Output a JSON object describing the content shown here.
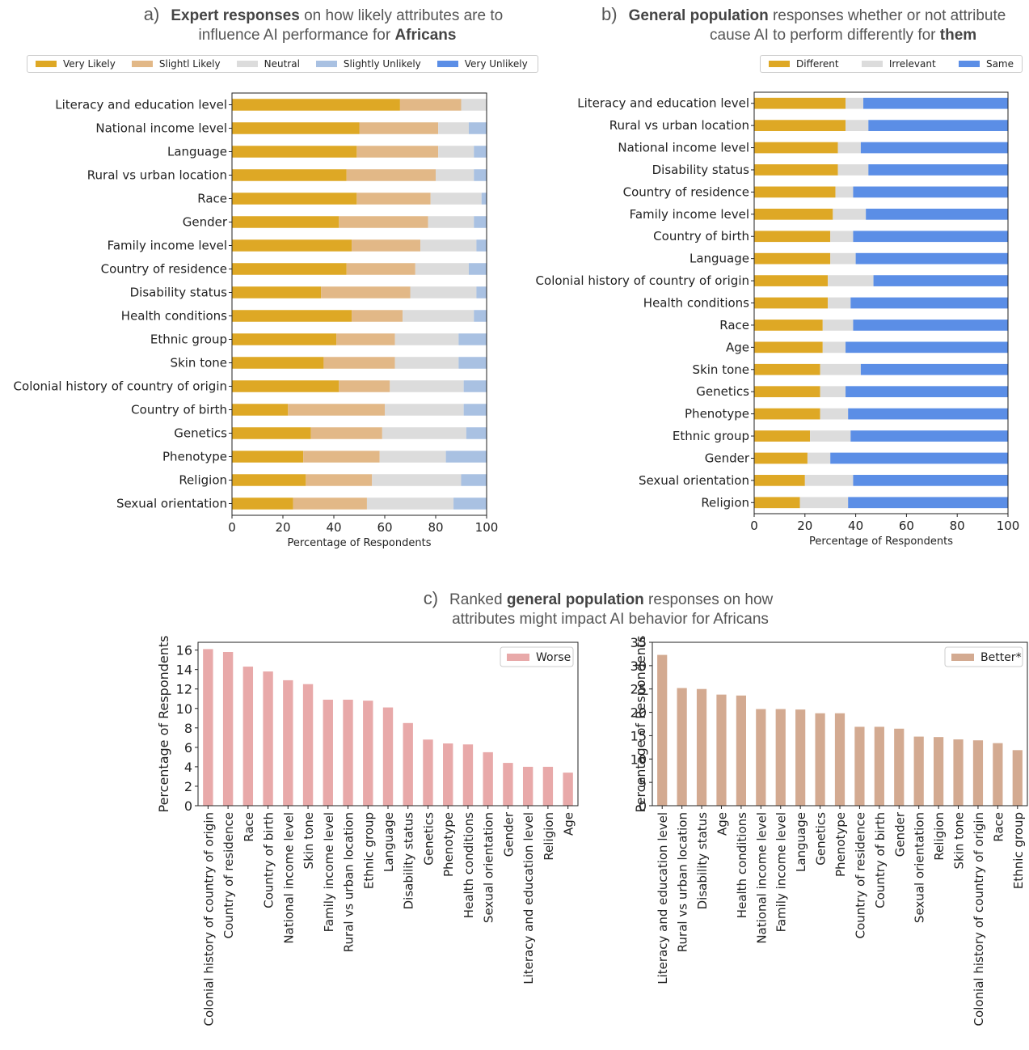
{
  "panel_a": {
    "letter": "a)",
    "title_bold1": "Expert responses",
    "title_rest1": " on how likely attributes are to",
    "title_line2_pre": "influence AI performance for ",
    "title_bold2": "Africans"
  },
  "panel_b": {
    "letter": "b)",
    "title_bold1": "General population",
    "title_rest1": " responses whether or not attribute",
    "title_line2_pre": "cause  AI to perform differently for ",
    "title_bold2": "them"
  },
  "panel_c": {
    "letter": "c)",
    "title_pre": "Ranked ",
    "title_bold": "general population",
    "title_rest1": "  responses on how",
    "title_line2": "attributes might impact AI behavior for Africans"
  },
  "chart_data": [
    {
      "type": "bar",
      "orientation": "horizontal",
      "stacked": true,
      "xlabel": "Percentage of Respondents",
      "xlim": [
        0,
        100
      ],
      "xticks": [
        0,
        20,
        40,
        60,
        80,
        100
      ],
      "legend_position": "top",
      "categories": [
        "Literacy and education level",
        "National income level",
        "Language",
        "Rural vs urban location",
        "Race",
        "Gender",
        "Family income level",
        "Country of residence",
        "Disability status",
        "Health conditions",
        "Ethnic group",
        "Skin tone",
        "Colonial history of country of origin",
        "Country of birth",
        "Genetics",
        "Phenotype",
        "Religion",
        "Sexual orientation"
      ],
      "series": [
        {
          "name": "Very Likely",
          "color": "#dea825",
          "values": [
            66,
            50,
            49,
            45,
            49,
            42,
            47,
            45,
            35,
            47,
            41,
            36,
            42,
            22,
            31,
            28,
            29,
            24
          ]
        },
        {
          "name": "Slightl Likely",
          "color": "#e2b887",
          "values": [
            24,
            31,
            32,
            35,
            29,
            35,
            27,
            27,
            35,
            20,
            23,
            28,
            20,
            38,
            28,
            30,
            26,
            29
          ]
        },
        {
          "name": "Neutral",
          "color": "#dcdcdc",
          "values": [
            10,
            12,
            14,
            15,
            20,
            18,
            22,
            21,
            26,
            28,
            25,
            25,
            29,
            31,
            33,
            26,
            35,
            34
          ]
        },
        {
          "name": "Slightly Unlikely",
          "color": "#a9c1e2",
          "values": [
            0,
            7,
            5,
            5,
            2,
            5,
            4,
            7,
            4,
            5,
            11,
            11,
            9,
            9,
            8,
            16,
            10,
            13
          ]
        },
        {
          "name": "Very Unlikely",
          "color": "#5b8ee6",
          "values": [
            0,
            0,
            0,
            0,
            0,
            0,
            0,
            0,
            0,
            0,
            0,
            0,
            0,
            0,
            0,
            0,
            0,
            0
          ]
        }
      ]
    },
    {
      "type": "bar",
      "orientation": "horizontal",
      "stacked": true,
      "xlabel": "Percentage of Respondents",
      "xlim": [
        0,
        100
      ],
      "xticks": [
        0,
        20,
        40,
        60,
        80,
        100
      ],
      "legend_position": "top",
      "categories": [
        "Literacy and education level",
        "Rural vs urban location",
        "National income level",
        "Disability status",
        "Country of residence",
        "Family income level",
        "Country of birth",
        "Language",
        "Colonial history of country of origin",
        "Health conditions",
        "Race",
        "Age",
        "Skin tone",
        "Genetics",
        "Phenotype",
        "Ethnic group",
        "Gender",
        "Sexual orientation",
        "Religion"
      ],
      "series": [
        {
          "name": "Different",
          "color": "#dea825",
          "values": [
            36,
            36,
            33,
            33,
            32,
            31,
            30,
            30,
            29,
            29,
            27,
            27,
            26,
            26,
            26,
            22,
            21,
            20,
            18
          ]
        },
        {
          "name": "Irrelevant",
          "color": "#dcdcdc",
          "values": [
            7,
            9,
            9,
            12,
            7,
            13,
            9,
            10,
            18,
            9,
            12,
            9,
            16,
            10,
            11,
            16,
            9,
            19,
            19
          ]
        },
        {
          "name": "Same",
          "color": "#5b8ee6",
          "values": [
            57,
            55,
            58,
            55,
            61,
            56,
            61,
            60,
            53,
            62,
            61,
            64,
            58,
            64,
            63,
            62,
            70,
            61,
            63
          ]
        }
      ]
    },
    {
      "type": "bar",
      "ylabel": "Percentage of Respondents",
      "ylim": [
        0,
        16.8
      ],
      "yticks": [
        0,
        2,
        4,
        6,
        8,
        10,
        12,
        14,
        16
      ],
      "legend_position": "top-right",
      "categories": [
        "Colonial history of country of origin",
        "Country of residence",
        "Race",
        "Country of birth",
        "National income level",
        "Skin tone",
        "Family income level",
        "Rural vs urban location",
        "Ethnic group",
        "Language",
        "Disability status",
        "Genetics",
        "Phenotype",
        "Health conditions",
        "Sexual orientation",
        "Gender",
        "Literacy and education level",
        "Religion",
        "Age"
      ],
      "series": [
        {
          "name": "Worse",
          "color": "#e8a9a9",
          "values": [
            16.1,
            15.8,
            14.3,
            13.8,
            12.9,
            12.5,
            10.9,
            10.9,
            10.8,
            10.1,
            8.5,
            6.8,
            6.4,
            6.3,
            5.5,
            4.4,
            4.0,
            4.0,
            3.4
          ]
        }
      ]
    },
    {
      "type": "bar",
      "ylabel": "Percentage of Respondents",
      "ylim": [
        0,
        35
      ],
      "yticks": [
        0,
        5,
        10,
        15,
        20,
        25,
        30,
        35
      ],
      "legend_position": "top-right",
      "categories": [
        "Literacy and education level",
        "Rural vs urban location",
        "Disability status",
        "Age",
        "Health conditions",
        "National income level",
        "Family income level",
        "Language",
        "Genetics",
        "Phenotype",
        "Country of residence",
        "Country of birth",
        "Gender",
        "Sexual orientation",
        "Religion",
        "Skin tone",
        "Colonial history of country of origin",
        "Race",
        "Ethnic group"
      ],
      "series": [
        {
          "name": "Better*",
          "color": "#d3aa91",
          "values": [
            32.3,
            25.2,
            25.0,
            23.8,
            23.6,
            20.7,
            20.7,
            20.6,
            19.8,
            19.8,
            16.9,
            16.9,
            16.5,
            14.8,
            14.7,
            14.2,
            14.0,
            13.4,
            11.9
          ]
        }
      ]
    }
  ]
}
